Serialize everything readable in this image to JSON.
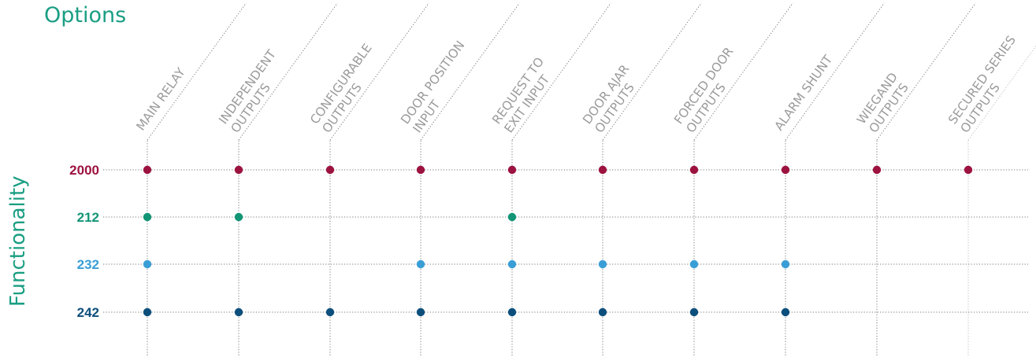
{
  "options_title": "Options",
  "functionality_title": "Functionality",
  "colors": {
    "text_primary": "#1a9e83",
    "column_label": "#9b9b9b",
    "grid": "#7a7a7a",
    "grid_faint": "#bcbcbc"
  },
  "columns": [
    {
      "lines": [
        "MAIN RELAY"
      ]
    },
    {
      "lines": [
        "INDEPENDENT",
        "OUTPUTS"
      ]
    },
    {
      "lines": [
        "CONFIGURABLE",
        "OUTPUTS"
      ]
    },
    {
      "lines": [
        "DOOR POSITION",
        "INPUT"
      ]
    },
    {
      "lines": [
        "REQUEST TO",
        "EXIT INPUT"
      ]
    },
    {
      "lines": [
        "DOOR AJAR",
        "OUTPUTS"
      ]
    },
    {
      "lines": [
        "FORCED DOOR",
        "OUTPUTS"
      ]
    },
    {
      "lines": [
        "ALARM SHUNT"
      ]
    },
    {
      "lines": [
        "WIEGAND",
        "OUTPUTS"
      ]
    },
    {
      "lines": [
        "SECURED SERIES",
        "OUTPUTS"
      ]
    }
  ],
  "rows": [
    {
      "label": "2000",
      "color": "#9d1340",
      "marks": [
        1,
        1,
        1,
        1,
        1,
        1,
        1,
        1,
        1,
        1
      ]
    },
    {
      "label": "212",
      "color": "#129575",
      "marks": [
        1,
        1,
        0,
        0,
        1,
        0,
        0,
        0,
        0,
        0
      ]
    },
    {
      "label": "232",
      "color": "#3a9ed6",
      "marks": [
        1,
        0,
        0,
        1,
        1,
        1,
        1,
        1,
        0,
        0
      ]
    },
    {
      "label": "242",
      "color": "#0d4f7c",
      "marks": [
        1,
        1,
        1,
        1,
        1,
        1,
        1,
        1,
        0,
        0
      ]
    }
  ]
}
